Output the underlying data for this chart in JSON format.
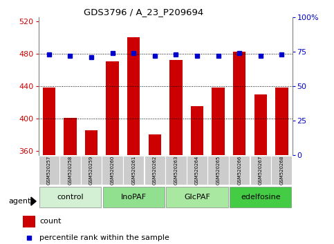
{
  "title": "GDS3796 / A_23_P209694",
  "samples": [
    "GSM520257",
    "GSM520258",
    "GSM520259",
    "GSM520260",
    "GSM520261",
    "GSM520262",
    "GSM520263",
    "GSM520264",
    "GSM520265",
    "GSM520266",
    "GSM520267",
    "GSM520268"
  ],
  "counts": [
    438,
    401,
    385,
    470,
    500,
    380,
    472,
    415,
    438,
    482,
    430,
    438
  ],
  "percentiles": [
    73,
    72,
    71,
    74,
    74,
    72,
    73,
    72,
    72,
    74,
    72,
    73
  ],
  "groups": [
    {
      "label": "control",
      "start": 0,
      "end": 3,
      "color": "#d4f0d4"
    },
    {
      "label": "InoPAF",
      "start": 3,
      "end": 6,
      "color": "#90e090"
    },
    {
      "label": "GlcPAF",
      "start": 6,
      "end": 9,
      "color": "#a8e8a0"
    },
    {
      "label": "edelfosine",
      "start": 9,
      "end": 12,
      "color": "#44cc44"
    }
  ],
  "bar_color": "#cc0000",
  "dot_color": "#0000cc",
  "ylim_left": [
    355,
    525
  ],
  "ylim_right": [
    0,
    100
  ],
  "yticks_left": [
    360,
    400,
    440,
    480,
    520
  ],
  "yticks_right": [
    0,
    25,
    50,
    75,
    100
  ],
  "grid_values": [
    400,
    440,
    480
  ],
  "bar_width": 0.6,
  "background_color": "#ffffff",
  "plot_bg": "#ffffff",
  "legend_count_color": "#cc0000",
  "legend_dot_color": "#0000cc"
}
